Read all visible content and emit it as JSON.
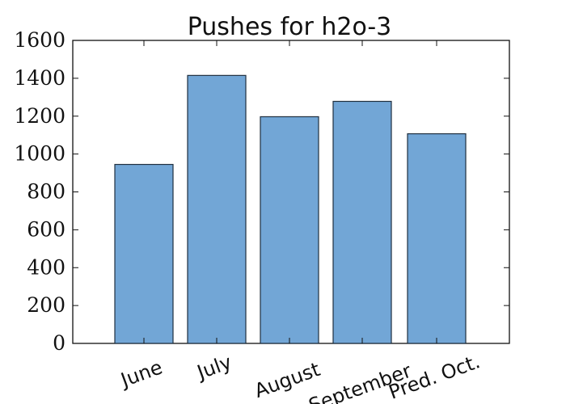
{
  "chart_data": {
    "type": "bar",
    "title": "Pushes for h2o-3",
    "categories": [
      "June",
      "July",
      "August",
      "September",
      "Pred. Oct."
    ],
    "values": [
      945,
      1415,
      1197,
      1278,
      1107
    ],
    "xlabel": "",
    "ylabel": "",
    "ylim": [
      0,
      1600
    ],
    "yticks": [
      0,
      200,
      400,
      600,
      800,
      1000,
      1200,
      1400,
      1600
    ],
    "ytick_labels": [
      "0",
      "200",
      "400",
      "600",
      "800",
      "1000",
      "1200",
      "1400",
      "1600"
    ],
    "grid": false,
    "legend": "none",
    "xtick_rotation_deg": -20,
    "colors": {
      "bar_fill": "#72a6d6",
      "bar_edge": "#1f2f3f",
      "axis": "#111111",
      "background": "#ffffff"
    }
  }
}
